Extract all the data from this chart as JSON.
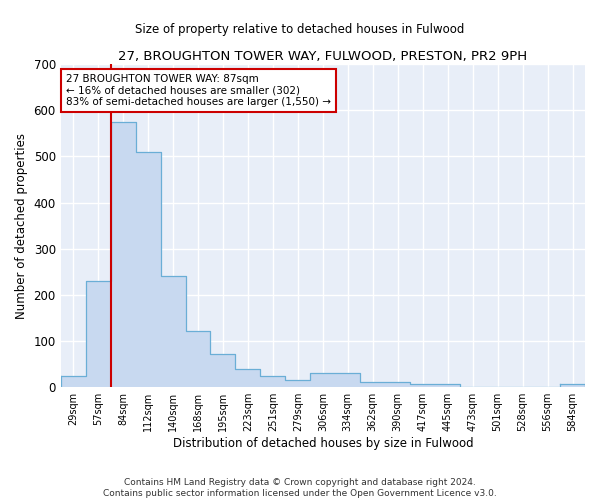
{
  "title": "27, BROUGHTON TOWER WAY, FULWOOD, PRESTON, PR2 9PH",
  "subtitle": "Size of property relative to detached houses in Fulwood",
  "xlabel": "Distribution of detached houses by size in Fulwood",
  "ylabel": "Number of detached properties",
  "bar_color": "#c8d9f0",
  "bar_edge_color": "#6aaed6",
  "background_color": "#e8eef8",
  "grid_color": "#ffffff",
  "annotation_line1": "27 BROUGHTON TOWER WAY: 87sqm",
  "annotation_line2": "← 16% of detached houses are smaller (302)",
  "annotation_line3": "83% of semi-detached houses are larger (1,550) →",
  "vline_color": "#cc0000",
  "categories": [
    "29sqm",
    "57sqm",
    "84sqm",
    "112sqm",
    "140sqm",
    "168sqm",
    "195sqm",
    "223sqm",
    "251sqm",
    "279sqm",
    "306sqm",
    "334sqm",
    "362sqm",
    "390sqm",
    "417sqm",
    "445sqm",
    "473sqm",
    "501sqm",
    "528sqm",
    "556sqm",
    "584sqm"
  ],
  "values": [
    25,
    230,
    575,
    510,
    240,
    122,
    72,
    40,
    25,
    15,
    30,
    30,
    12,
    12,
    8,
    8,
    0,
    0,
    0,
    0,
    7
  ],
  "ylim": [
    0,
    700
  ],
  "yticks": [
    0,
    100,
    200,
    300,
    400,
    500,
    600,
    700
  ],
  "footer": "Contains HM Land Registry data © Crown copyright and database right 2024.\nContains public sector information licensed under the Open Government Licence v3.0.",
  "vline_bar_index": 2
}
